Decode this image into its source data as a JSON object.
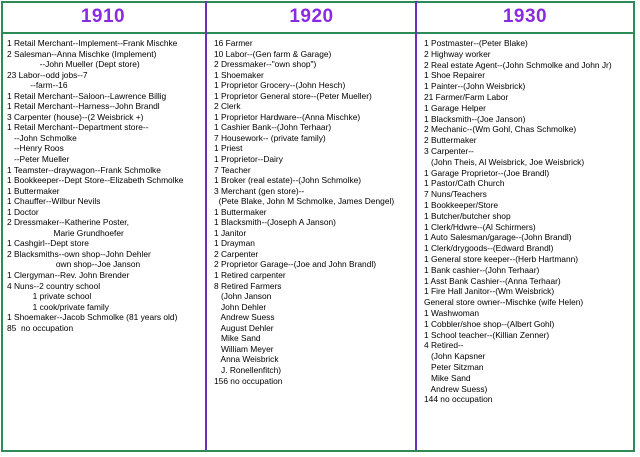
{
  "columns": [
    {
      "year": "1910",
      "lines": [
        "1 Retail Merchant--Implement--Frank Mischke",
        "2 Salesman--Anna Mischke (Implement)",
        "              --John Mueller (Dept store)",
        "23 Labor--odd jobs--7",
        "          --farm--16",
        "1 Retail Merchant--Saloon--Lawrence Billig",
        "1 Retail Merchant--Harness--John Brandl",
        "3 Carpenter (house)--(2 Weisbrick +)",
        "1 Retail Merchant--Department store--",
        "   --John Schmolke",
        "   --Henry Roos",
        "   --Peter Mueller",
        "1 Teamster--draywagon--Frank Schmolke",
        "1 Bookkeeper--Dept Store--Elizabeth Schmolke",
        "1 Buttermaker",
        "1 Chauffer--Wilbur Nevils",
        "1 Doctor",
        "2 Dressmaker--Katherine Poster,",
        "                    Marie Grundhoefer",
        "1 Cashgirl--Dept store",
        "2 Blacksmiths--own shop--John Dehler",
        "                     own shop--Joe Janson",
        "1 Clergyman--Rev. John Brender",
        "4 Nuns--2 country school",
        "           1 private school",
        "           1 cook/private family",
        "1 Shoemaker--Jacob Schmolke (81 years old)",
        "85  no occupation"
      ]
    },
    {
      "year": "1920",
      "lines": [
        "16 Farmer",
        "10 Labor--(Gen farm & Garage)",
        "2 Dressmaker--\"own shop\")",
        "1 Shoemaker",
        "1 Proprietor Grocery--(John Hesch)",
        "1 Proprietor General store--(Peter Mueller)",
        "2 Clerk",
        "1 Proprietor Hardware--(Anna Mischke)",
        "1 Cashier Bank--(John Terhaar)",
        "7 Housework-- (private family)",
        "1 Priest",
        "1 Proprietor--Dairy",
        "7 Teacher",
        "1 Broker (real estate)--(John Schmolke)",
        "3 Merchant (gen store)--",
        "  (Pete Blake, John M Schmolke, James Dengel)",
        "1 Buttermaker",
        "1 Blacksmith--(Joseph A Janson)",
        "1 Janitor",
        "1 Drayman",
        "2 Carpenter",
        "2 Proprietor Garage--(Joe and John Brandl)",
        "1 Retired carpenter",
        "8 Retired Farmers",
        "   (John Janson",
        "   John Dehler",
        "   Andrew Suess",
        "   August Dehler",
        "   Mike Sand",
        "   William Meyer",
        "   Anna Weisbrick",
        "   J. Ronellenfitch)",
        "156 no occupation"
      ]
    },
    {
      "year": "1930",
      "lines": [
        "1 Postmaster--(Peter Blake)",
        "2 Highway worker",
        "2 Real estate Agent--(John Schmolke and John Jr)",
        "1 Shoe Repairer",
        "1 Painter--(John Weisbrick)",
        "21 Farmer/Farm Labor",
        "1 Garage Helper",
        "1 Blacksmith--(Joe Janson)",
        "2 Mechanic--(Wm Gohl, Chas Schmolke)",
        "2 Buttermaker",
        "3 Carpenter--",
        "   (John Theis, Al Weisbrick, Joe Weisbrick)",
        "1 Garage Proprietor--(Joe Brandl)",
        "1 Pastor/Cath Church",
        "7 Nuns/Teachers",
        "1 Bookkeeper/Store",
        "1 Butcher/butcher shop",
        "1 Clerk/Hdwre--(Al Schirmers)",
        "1 Auto Salesman/garage--(John Brandl)",
        "1 Clerk/drygoods--(Edward Brandl)",
        "1 General store keeper--(Herb Hartmann)",
        "1 Bank cashier--(John Terhaar)",
        "1 Asst Bank Cashier--(Anna Terhaar)",
        "1 Fire Hall Janitor--(Wm Weisbrick)",
        "General store owner--Mischke (wife Helen)",
        "1 Washwoman",
        "1 Cobbler/shoe shop--(Albert Gohl)",
        "1 School teacher--(Killian Zenner)",
        "4 Retired--",
        "   (John Kapsner",
        "   Peter Sitzman",
        "   Mike Sand",
        "   Andrew Suess)",
        "144 no occupation"
      ]
    }
  ]
}
